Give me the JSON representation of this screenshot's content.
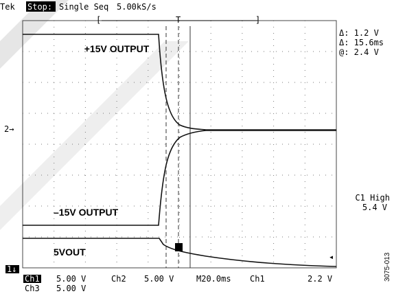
{
  "header": {
    "brand": "Tek",
    "state": "Stop:",
    "mode": "Single Seq",
    "rate": "5.00kS/s"
  },
  "readout": {
    "delta_v": "Δ: 1.2 V",
    "delta_t": "Δ: 15.6ms",
    "at": "@: 2.4 V"
  },
  "trigger": {
    "label": "C1 High",
    "level": "5.4 V"
  },
  "traces": {
    "pos": "+15V OUTPUT",
    "neg": "–15V OUTPUT",
    "five": "5VOUT"
  },
  "markers": {
    "ch2": "2→",
    "ch1": "1↓",
    "trig": "T"
  },
  "footer": {
    "ch1": "Ch1",
    "ch1_scale": "5.00 V",
    "ch2": "Ch2",
    "ch2_scale": "5.00 V",
    "timebase": "M20.0ms",
    "trig_src": "Ch1",
    "trig_level": "2.2 V",
    "ch3": "Ch3",
    "ch3_scale": "5.00 V"
  },
  "figure_id": "3075-013"
}
